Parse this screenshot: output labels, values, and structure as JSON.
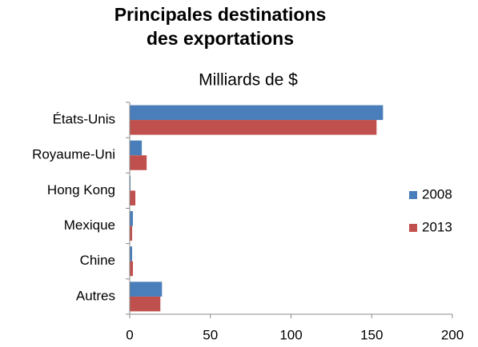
{
  "chart_data": {
    "type": "hbar",
    "title": [
      "Principales destinations",
      "des exportations"
    ],
    "subtitle": "Milliards de $",
    "categories": [
      "États-Unis",
      "Royaume-Uni",
      "Hong Kong",
      "Mexique",
      "Chine",
      "Autres"
    ],
    "series": [
      {
        "name": "2008",
        "color": "#4a7ebb",
        "values": [
          157,
          7.5,
          0.5,
          2,
          1.5,
          20
        ]
      },
      {
        "name": "2013",
        "color": "#c0504d",
        "values": [
          153,
          10.5,
          3.5,
          1.5,
          2,
          19
        ]
      }
    ],
    "xlim": [
      0,
      200
    ],
    "xticks": [
      0,
      50,
      100,
      150,
      200
    ],
    "legend": "right"
  }
}
